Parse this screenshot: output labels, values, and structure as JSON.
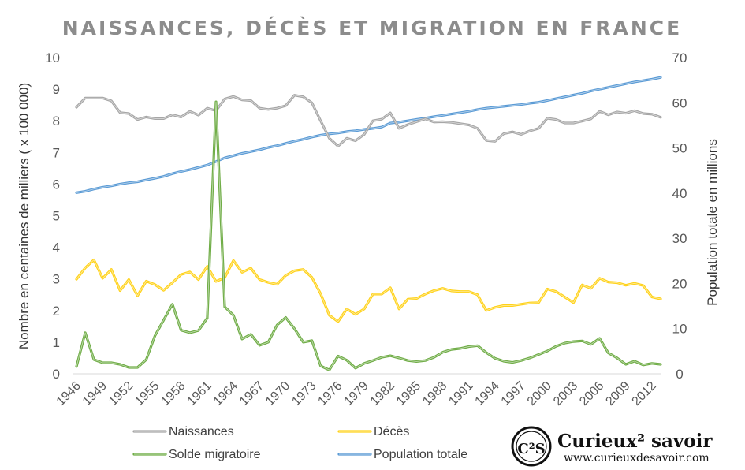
{
  "chart_data": {
    "type": "line",
    "title": "NAISSANCES, DÉCÈS ET MIGRATION EN FRANCE",
    "ylabel": "Nombre en centaines de milliers ( x 100 000)",
    "y2label": "Population totale en millions",
    "ylim": [
      0,
      10
    ],
    "y2lim": [
      0,
      70
    ],
    "yticks": [
      "0",
      "1",
      "2",
      "3",
      "4",
      "5",
      "6",
      "7",
      "8",
      "9",
      "10"
    ],
    "y2ticks": [
      "0",
      "10",
      "20",
      "30",
      "40",
      "50",
      "60",
      "70"
    ],
    "xticks": [
      "1946",
      "1949",
      "1952",
      "1955",
      "1958",
      "1961",
      "1964",
      "1967",
      "1970",
      "1973",
      "1976",
      "1979",
      "1982",
      "1985",
      "1988",
      "1991",
      "1994",
      "1997",
      "2000",
      "2003",
      "2006",
      "2009",
      "2012"
    ],
    "x": [
      1946,
      1947,
      1948,
      1949,
      1950,
      1951,
      1952,
      1953,
      1954,
      1955,
      1956,
      1957,
      1958,
      1959,
      1960,
      1961,
      1962,
      1963,
      1964,
      1965,
      1966,
      1967,
      1968,
      1969,
      1970,
      1971,
      1972,
      1973,
      1974,
      1975,
      1976,
      1977,
      1978,
      1979,
      1980,
      1981,
      1982,
      1983,
      1984,
      1985,
      1986,
      1987,
      1988,
      1989,
      1990,
      1991,
      1992,
      1993,
      1994,
      1995,
      1996,
      1997,
      1998,
      1999,
      2000,
      2001,
      2002,
      2003,
      2004,
      2005,
      2006,
      2007,
      2008,
      2009,
      2010,
      2011,
      2012,
      2013
    ],
    "grid": false,
    "legend_position": "bottom",
    "series": [
      {
        "name": "Naissances",
        "axis": "left",
        "color": "#a6a6a6",
        "values": [
          8.43,
          8.72,
          8.72,
          8.72,
          8.63,
          8.26,
          8.23,
          8.04,
          8.12,
          8.07,
          8.07,
          8.19,
          8.12,
          8.3,
          8.18,
          8.4,
          8.32,
          8.69,
          8.77,
          8.66,
          8.64,
          8.4,
          8.36,
          8.4,
          8.48,
          8.81,
          8.76,
          8.57,
          8.0,
          7.45,
          7.2,
          7.45,
          7.37,
          7.57,
          8.0,
          8.05,
          8.25,
          7.76,
          7.88,
          7.97,
          8.06,
          7.96,
          7.97,
          7.95,
          7.91,
          7.87,
          7.76,
          7.38,
          7.35,
          7.59,
          7.65,
          7.57,
          7.68,
          7.76,
          8.08,
          8.04,
          7.93,
          7.93,
          7.99,
          8.06,
          8.3,
          8.19,
          8.28,
          8.24,
          8.32,
          8.23,
          8.21,
          8.11
        ]
      },
      {
        "name": "Décès",
        "axis": "left",
        "color": "#ffd21a",
        "values": [
          2.99,
          3.35,
          3.6,
          3.02,
          3.3,
          2.63,
          2.98,
          2.47,
          2.93,
          2.82,
          2.64,
          2.88,
          3.14,
          3.22,
          2.98,
          3.4,
          2.92,
          3.04,
          3.58,
          3.21,
          3.34,
          2.98,
          2.89,
          2.83,
          3.11,
          3.26,
          3.3,
          3.05,
          2.53,
          1.85,
          1.65,
          2.05,
          1.88,
          2.05,
          2.52,
          2.52,
          2.72,
          2.05,
          2.36,
          2.38,
          2.52,
          2.63,
          2.7,
          2.62,
          2.6,
          2.6,
          2.5,
          2.0,
          2.1,
          2.16,
          2.16,
          2.2,
          2.24,
          2.25,
          2.68,
          2.6,
          2.43,
          2.25,
          2.81,
          2.7,
          3.02,
          2.9,
          2.88,
          2.8,
          2.86,
          2.79,
          2.43,
          2.37
        ]
      },
      {
        "name": "Solde migratoire",
        "axis": "left",
        "color": "#70ad47",
        "values": [
          0.23,
          1.3,
          0.45,
          0.35,
          0.35,
          0.3,
          0.2,
          0.2,
          0.45,
          1.2,
          1.7,
          2.2,
          1.38,
          1.3,
          1.37,
          1.76,
          8.6,
          2.12,
          1.85,
          1.1,
          1.25,
          0.9,
          1.0,
          1.54,
          1.78,
          1.43,
          1.0,
          1.05,
          0.25,
          0.12,
          0.56,
          0.43,
          0.18,
          0.33,
          0.42,
          0.52,
          0.57,
          0.5,
          0.42,
          0.39,
          0.42,
          0.52,
          0.68,
          0.77,
          0.8,
          0.86,
          0.89,
          0.67,
          0.49,
          0.4,
          0.36,
          0.42,
          0.5,
          0.61,
          0.72,
          0.87,
          0.97,
          1.02,
          1.04,
          0.93,
          1.12,
          0.66,
          0.5,
          0.3,
          0.4,
          0.28,
          0.33,
          0.3
        ]
      },
      {
        "name": "Population totale",
        "axis": "right",
        "color": "#5b9bd5",
        "values": [
          40.1,
          40.4,
          40.9,
          41.3,
          41.6,
          42.0,
          42.3,
          42.5,
          42.9,
          43.3,
          43.7,
          44.3,
          44.8,
          45.2,
          45.7,
          46.2,
          47.0,
          47.8,
          48.3,
          48.8,
          49.2,
          49.6,
          50.1,
          50.5,
          51.0,
          51.5,
          51.9,
          52.4,
          52.8,
          53.1,
          53.3,
          53.6,
          53.8,
          54.1,
          54.3,
          54.6,
          55.5,
          55.7,
          56.0,
          56.3,
          56.6,
          56.9,
          57.2,
          57.5,
          57.8,
          58.1,
          58.5,
          58.8,
          59.0,
          59.2,
          59.4,
          59.6,
          59.9,
          60.1,
          60.5,
          60.9,
          61.3,
          61.7,
          62.1,
          62.6,
          63.0,
          63.4,
          63.8,
          64.2,
          64.6,
          64.9,
          65.2,
          65.6
        ]
      }
    ]
  },
  "brand": {
    "logo_letters": "C²S",
    "name": "Curieux² savoir",
    "url": "www.curieuxdesavoir.com"
  }
}
